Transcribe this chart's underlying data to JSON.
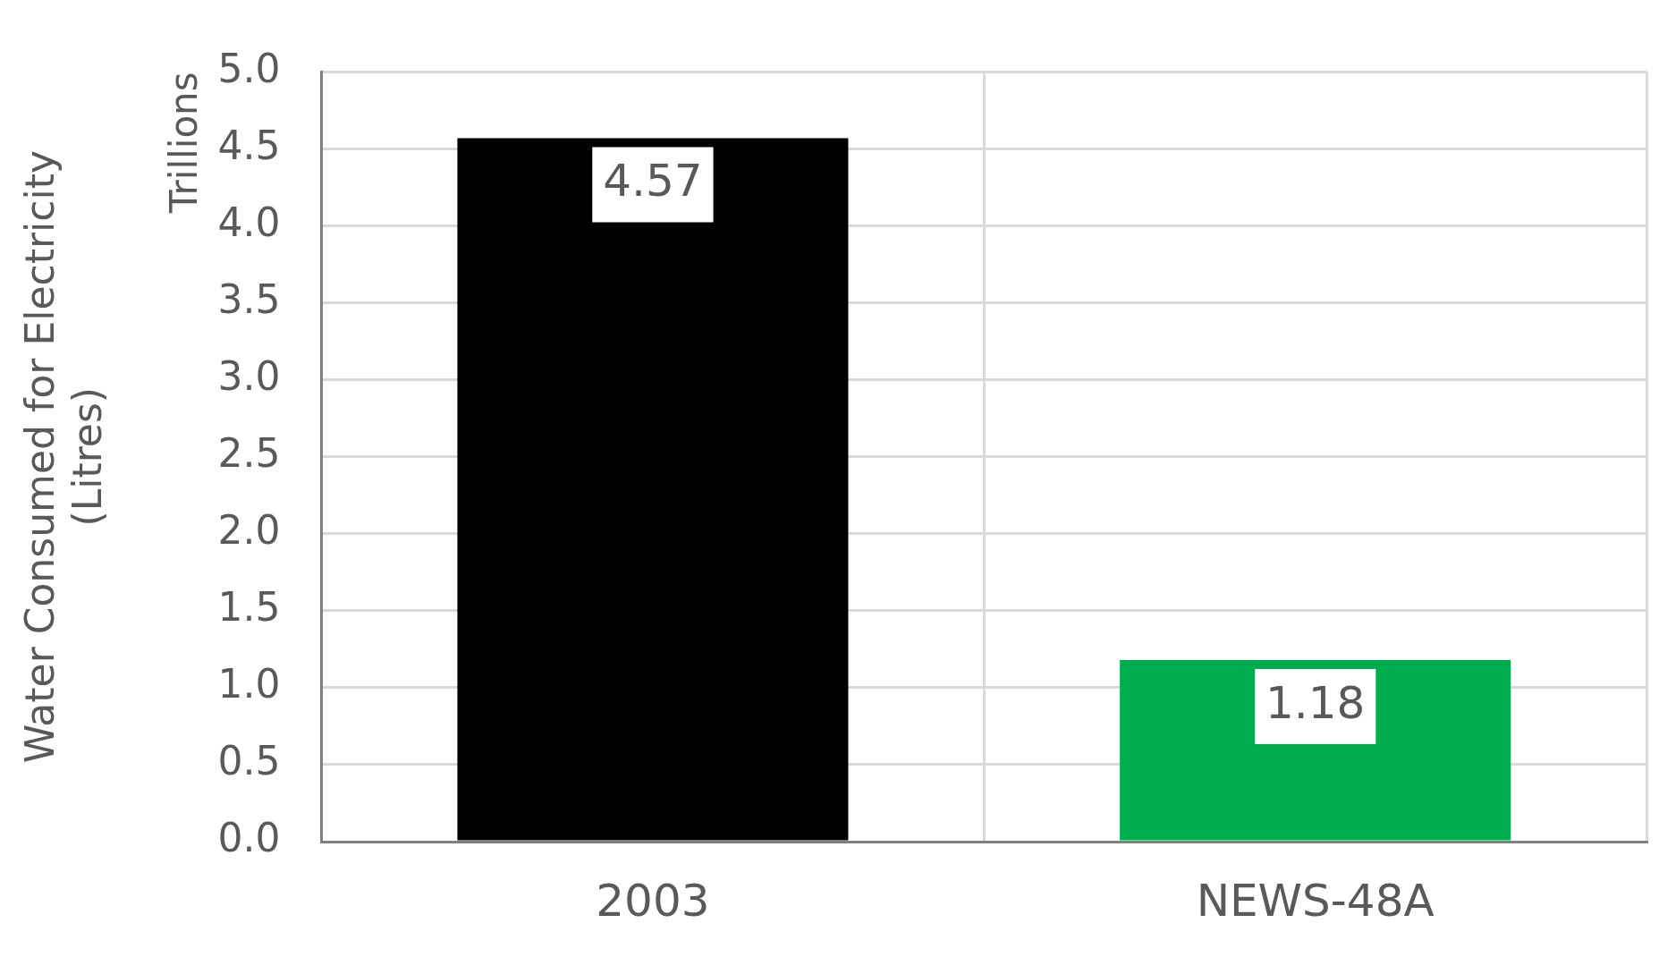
{
  "chart_data": {
    "type": "bar",
    "ylabel": "Water Consumed for Electricity\n(Litres)",
    "annotations": [
      "Trillions"
    ],
    "categories": [
      "2003",
      "NEWS-48A"
    ],
    "values": [
      4.57,
      1.18
    ],
    "colors": [
      "#000000",
      "#00ad4c"
    ],
    "ylim": [
      0,
      5
    ],
    "yticks": [
      {
        "value": 0,
        "label": "0.0"
      },
      {
        "value": 0.5,
        "label": "0.5"
      },
      {
        "value": 1,
        "label": "1.0"
      },
      {
        "value": 1.5,
        "label": "1.5"
      },
      {
        "value": 2,
        "label": "2.0"
      },
      {
        "value": 2.5,
        "label": "2.5"
      },
      {
        "value": 3,
        "label": "3.0"
      },
      {
        "value": 3.5,
        "label": "3.5"
      },
      {
        "value": 4,
        "label": "4.0"
      },
      {
        "value": 4.5,
        "label": "4.5"
      },
      {
        "value": 5,
        "label": "5.0"
      }
    ],
    "grid": true,
    "data_labels": true,
    "legend": false
  }
}
